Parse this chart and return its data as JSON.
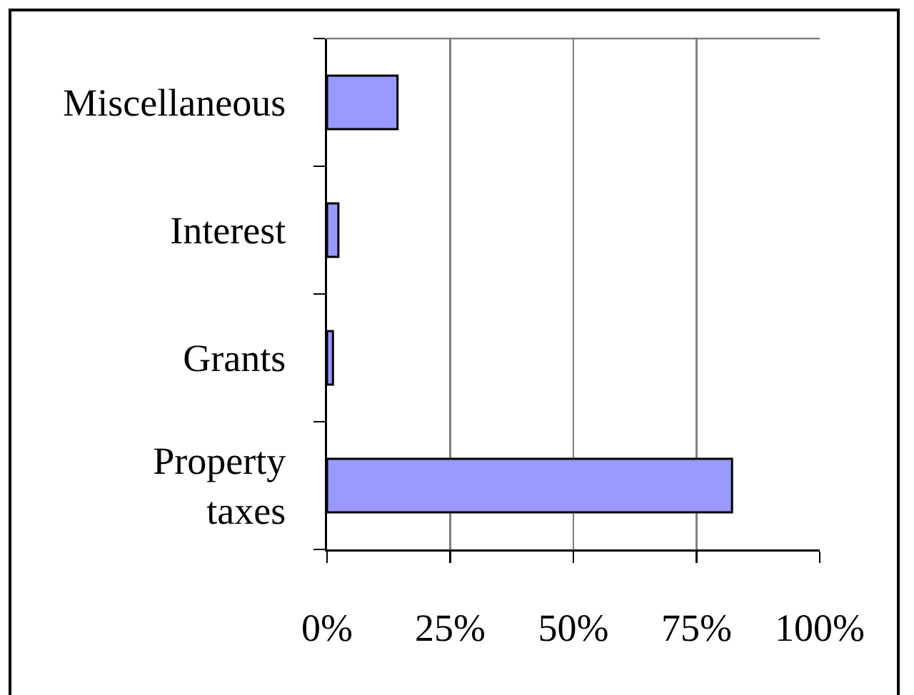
{
  "chart_data": {
    "type": "bar",
    "orientation": "horizontal",
    "categories": [
      "Miscellaneous",
      "Interest",
      "Grants",
      "Property taxes"
    ],
    "values": [
      14.3,
      2.3,
      1.2,
      82.2
    ],
    "color": "#9999ff",
    "xlim": [
      0,
      100
    ],
    "xticks": [
      {
        "value": 0,
        "label": "0%"
      },
      {
        "value": 25,
        "label": "25%"
      },
      {
        "value": 50,
        "label": "50%"
      },
      {
        "value": 75,
        "label": "75%"
      },
      {
        "value": 100,
        "label": "100%"
      }
    ],
    "grid": "x"
  }
}
